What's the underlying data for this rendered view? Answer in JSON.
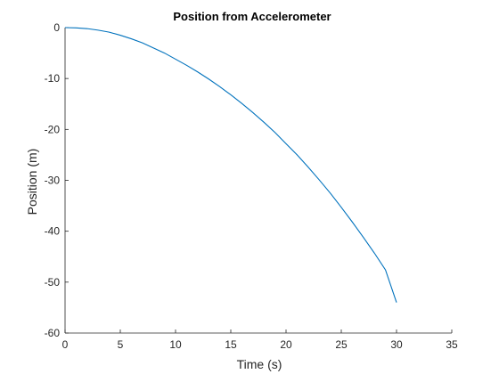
{
  "chart_data": {
    "type": "line",
    "title": "Position from Accelerometer",
    "xlabel": "Time (s)",
    "ylabel": "Position (m)",
    "xlim": [
      0,
      35
    ],
    "ylim": [
      -60,
      0
    ],
    "xticks": [
      0,
      5,
      10,
      15,
      20,
      25,
      30,
      35
    ],
    "yticks": [
      0,
      -10,
      -20,
      -30,
      -40,
      -50,
      -60
    ],
    "grid": false,
    "legend": "none",
    "series": [
      {
        "color": "#0072BD",
        "x": [
          0,
          1,
          2,
          3,
          4,
          5,
          6,
          7,
          8,
          9,
          10,
          11,
          12,
          13,
          14,
          15,
          16,
          17,
          18,
          19,
          20,
          21,
          22,
          23,
          24,
          25,
          26,
          27,
          28,
          29,
          30
        ],
        "y": [
          0,
          -0.05,
          -0.2,
          -0.5,
          -0.9,
          -1.5,
          -2.2,
          -3.0,
          -4.0,
          -5.0,
          -6.2,
          -7.4,
          -8.7,
          -10.1,
          -11.6,
          -13.2,
          -14.9,
          -16.7,
          -18.6,
          -20.6,
          -22.8,
          -25.0,
          -27.4,
          -29.9,
          -32.5,
          -35.3,
          -38.2,
          -41.2,
          -44.3,
          -47.6,
          -54.0
        ]
      }
    ]
  }
}
